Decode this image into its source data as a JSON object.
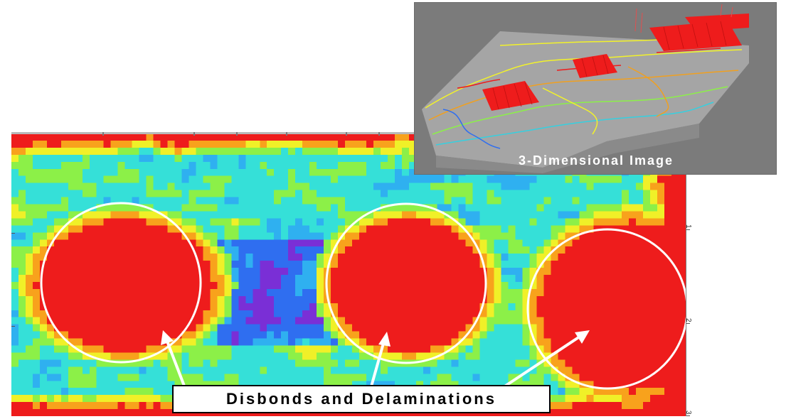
{
  "inset": {
    "caption": "3-Dimensional Image"
  },
  "annotation": {
    "label": "Disbonds and Delaminations"
  },
  "axis": {
    "right_ticks": [
      "1",
      "2",
      "3"
    ]
  },
  "colors": {
    "background": "#ffffff",
    "defect_red": "#ee1c1c",
    "inset_bg": "#7b7b7b",
    "circle": "#ffffff",
    "colormap": [
      "#3b1fa8",
      "#7a2fd6",
      "#2f6ef0",
      "#2fb0f0",
      "#35e0d8",
      "#8cf048",
      "#f0f028",
      "#f8a21c",
      "#ee1c1c"
    ]
  },
  "icons": {
    "circle": "defect-circle-icon",
    "arrow": "pointer-arrow-icon"
  }
}
